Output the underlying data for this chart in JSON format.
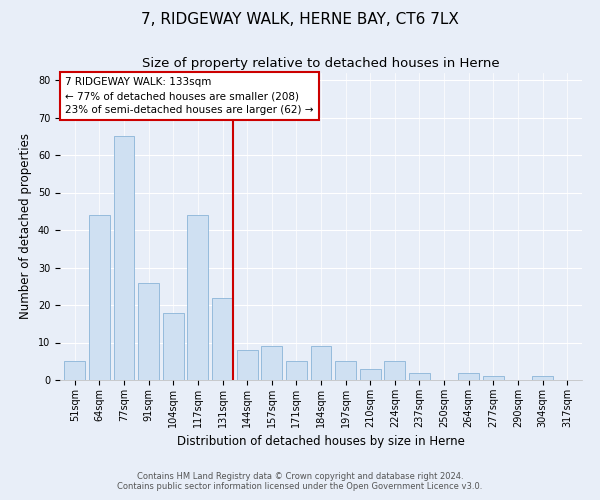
{
  "title": "7, RIDGEWAY WALK, HERNE BAY, CT6 7LX",
  "subtitle": "Size of property relative to detached houses in Herne",
  "xlabel": "Distribution of detached houses by size in Herne",
  "ylabel": "Number of detached properties",
  "bar_labels": [
    "51sqm",
    "64sqm",
    "77sqm",
    "91sqm",
    "104sqm",
    "117sqm",
    "131sqm",
    "144sqm",
    "157sqm",
    "171sqm",
    "184sqm",
    "197sqm",
    "210sqm",
    "224sqm",
    "237sqm",
    "250sqm",
    "264sqm",
    "277sqm",
    "290sqm",
    "304sqm",
    "317sqm"
  ],
  "bar_values": [
    5,
    44,
    65,
    26,
    18,
    44,
    22,
    8,
    9,
    5,
    9,
    5,
    3,
    5,
    2,
    0,
    2,
    1,
    0,
    1,
    0
  ],
  "bar_color": "#cfe0f2",
  "bar_edge_color": "#8ab4d8",
  "vline_color": "#cc0000",
  "annotation_title": "7 RIDGEWAY WALK: 133sqm",
  "annotation_line1": "← 77% of detached houses are smaller (208)",
  "annotation_line2": "23% of semi-detached houses are larger (62) →",
  "annotation_box_color": "#ffffff",
  "annotation_box_edge": "#cc0000",
  "ylim": [
    0,
    82
  ],
  "yticks": [
    0,
    10,
    20,
    30,
    40,
    50,
    60,
    70,
    80
  ],
  "footer1": "Contains HM Land Registry data © Crown copyright and database right 2024.",
  "footer2": "Contains public sector information licensed under the Open Government Licence v3.0.",
  "bg_color": "#e8eef8",
  "plot_bg_color": "#e8eef8",
  "title_fontsize": 11,
  "subtitle_fontsize": 9.5,
  "axis_label_fontsize": 8.5,
  "tick_fontsize": 7,
  "annotation_fontsize": 7.5,
  "footer_fontsize": 6
}
